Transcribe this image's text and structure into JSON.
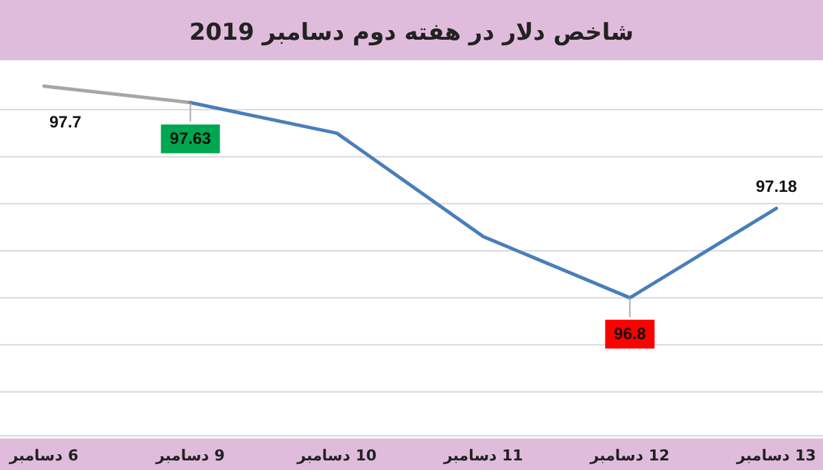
{
  "chart_data": {
    "type": "line",
    "title": "شاخص دلار در هفته دوم دسامبر 2019",
    "categories": [
      "6 دسامبر",
      "9 دسامبر",
      "10 دسامبر",
      "11 دسامبر",
      "12 دسامبر",
      "13 دسامبر"
    ],
    "series": [
      {
        "color": "#a6a6a6",
        "values": [
          97.7,
          97.63,
          null,
          null,
          null,
          null
        ],
        "value_labels": [
          "97.7",
          null,
          null,
          null,
          null,
          null
        ]
      },
      {
        "color": "#4a7ebb",
        "values": [
          null,
          97.63,
          97.5,
          97.06,
          96.8,
          97.18
        ],
        "value_labels": [
          null,
          "97.63",
          null,
          null,
          "96.8",
          "97.18"
        ]
      }
    ],
    "yticks": [
      {
        "value": 96.4,
        "label": null
      },
      {
        "value": 96.6,
        "label": null
      },
      {
        "value": 96.8,
        "label": null
      },
      {
        "value": 97.0,
        "label": null
      },
      {
        "value": 97.2,
        "label": null
      },
      {
        "value": 97.4,
        "label": null
      },
      {
        "value": 97.6,
        "label": null
      }
    ],
    "grid": "y",
    "tick_labels": "x",
    "marker": "none",
    "line_style": "solid"
  }
}
